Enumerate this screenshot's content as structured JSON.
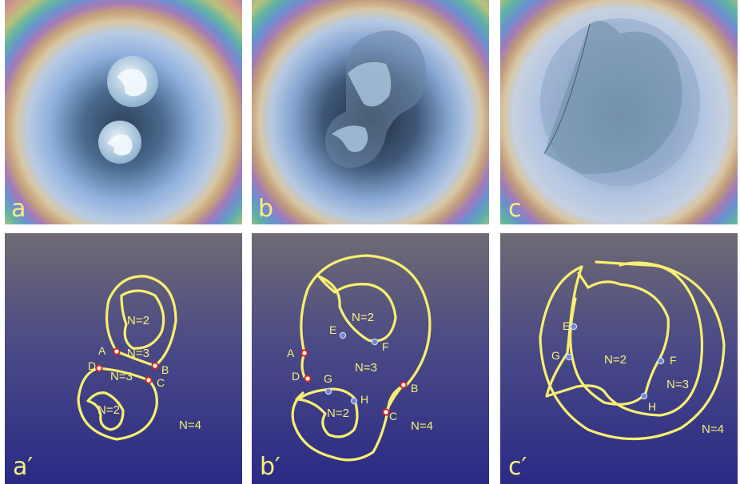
{
  "panels_top": [
    {
      "label": "a"
    },
    {
      "label": "b"
    },
    {
      "label": "c"
    }
  ],
  "panels_bottom": [
    {
      "label": "a′",
      "regions": {
        "inner_top": "N=2",
        "mid_top": "N=3",
        "mid_bottom": "N=3",
        "inner_bottom": "N=2",
        "outer": "N=4"
      },
      "points": {
        "A": "A",
        "B": "B",
        "C": "C",
        "D": "D"
      }
    },
    {
      "label": "b′",
      "regions": {
        "inner_top": "N=2",
        "middle": "N=3",
        "inner_bottom": "N=2",
        "outer": "N=4"
      },
      "points": {
        "A": "A",
        "B": "B",
        "C": "C",
        "D": "D",
        "E": "E",
        "F": "F",
        "G": "G",
        "H": "H"
      }
    },
    {
      "label": "c′",
      "regions": {
        "inner": "N=2",
        "middle": "N=3",
        "outer": "N=4"
      },
      "points": {
        "E": "E",
        "F": "F",
        "G": "G",
        "H": "H"
      }
    }
  ],
  "colors": {
    "curve": "#f7ef70",
    "label": "#f6f07a",
    "red_marker": "#d8231e",
    "blue_marker": "#6f86d2",
    "bottom_gradient_top": "#6f6a73",
    "bottom_gradient_bottom": "#2a2a86"
  }
}
